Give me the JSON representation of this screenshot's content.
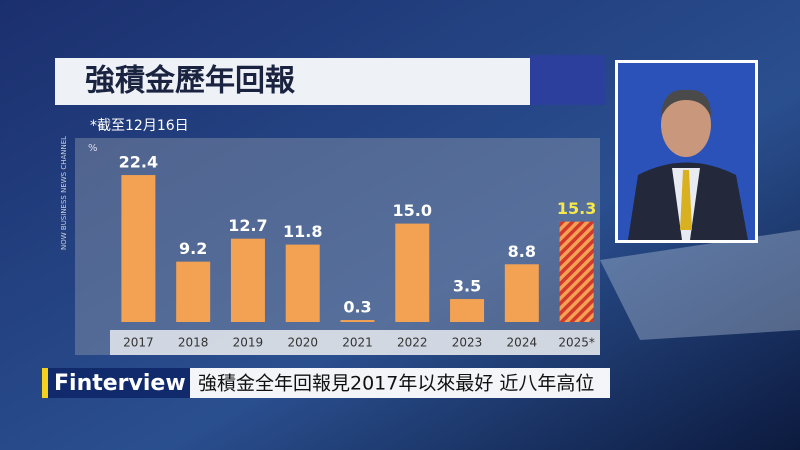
{
  "chart_data": {
    "type": "bar",
    "title": "強積金歷年回報",
    "subtitle": "*截至12月16日",
    "y_label": "%",
    "categories": [
      "2017",
      "2018",
      "2019",
      "2020",
      "2021",
      "2022",
      "2023",
      "2024",
      "2025*"
    ],
    "values": [
      22.4,
      9.2,
      12.7,
      11.8,
      0.3,
      15.0,
      3.5,
      8.8,
      15.3
    ],
    "value_labels": [
      "22.4",
      "9.2",
      "12.7",
      "11.8",
      "0.3",
      "15.0",
      "3.5",
      "8.8",
      "15.3"
    ],
    "bar_styles": [
      "solid",
      "solid",
      "solid",
      "solid",
      "solid",
      "solid",
      "solid",
      "solid",
      "hatched"
    ],
    "color": "#f2a252",
    "hatch_color": "#d4372b",
    "ylim": [
      0,
      25
    ]
  },
  "channel": "NOW BUSINESS NEWS CHANNEL",
  "banner": {
    "program": "Finterview",
    "headline": "強積金全年回報見2017年以來最好 近八年高位"
  }
}
